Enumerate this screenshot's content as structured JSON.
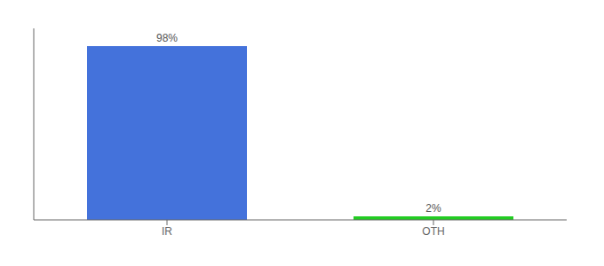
{
  "chart_data": {
    "type": "bar",
    "categories": [
      "IR",
      "OTH"
    ],
    "values": [
      98,
      2
    ],
    "colors": [
      "#4472db",
      "#22cc22"
    ],
    "value_labels": [
      "98%",
      "2%"
    ],
    "data_labels": true,
    "ylim": [
      0,
      108
    ],
    "yticks": [],
    "tick_labels": "x",
    "grid": false
  }
}
